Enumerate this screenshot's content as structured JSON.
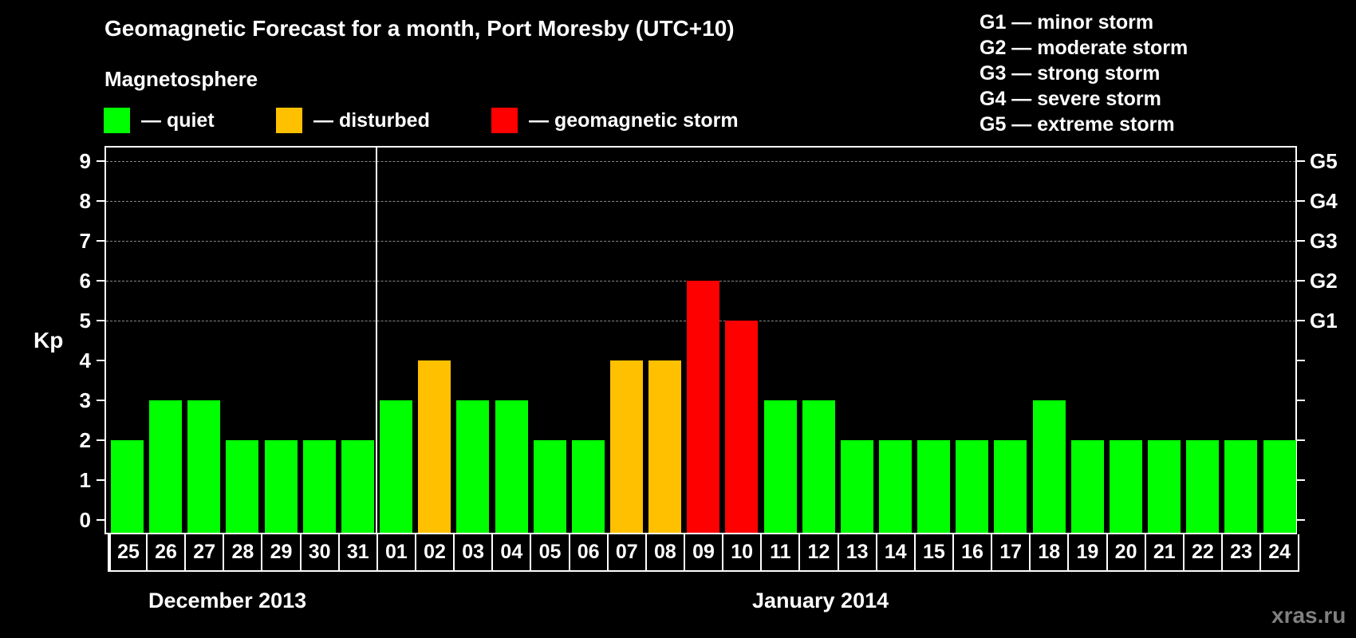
{
  "header": {
    "title": "Geomagnetic Forecast for a month, Port Moresby (UTC+10)",
    "magnetosphere_label": "Magnetosphere"
  },
  "legend": {
    "items": [
      {
        "label": "— quiet",
        "color": "#00ff00"
      },
      {
        "label": "— disturbed",
        "color": "#ffc000"
      },
      {
        "label": "— geomagnetic storm",
        "color": "#ff0000"
      }
    ]
  },
  "g_legend": [
    "G1 — minor storm",
    "G2 — moderate storm",
    "G3 — strong storm",
    "G4 — severe storm",
    "G5 — extreme storm"
  ],
  "axis": {
    "ylabel": "Kp",
    "yticks": [
      "0",
      "1",
      "2",
      "3",
      "4",
      "5",
      "6",
      "7",
      "8",
      "9"
    ],
    "right_labels": [
      {
        "value": 5,
        "label": "G1"
      },
      {
        "value": 6,
        "label": "G2"
      },
      {
        "value": 7,
        "label": "G3"
      },
      {
        "value": 8,
        "label": "G4"
      },
      {
        "value": 9,
        "label": "G5"
      }
    ]
  },
  "months": {
    "first": "December 2013",
    "second": "January 2014"
  },
  "watermark": "xras.ru",
  "chart_data": {
    "type": "bar",
    "title": "Geomagnetic Forecast for a month, Port Moresby (UTC+10)",
    "xlabel": "",
    "ylabel": "Kp",
    "ylim": [
      0,
      9
    ],
    "grid": "dashed horizontal at Kp 5-9",
    "categories": [
      "25",
      "26",
      "27",
      "28",
      "29",
      "30",
      "31",
      "01",
      "02",
      "03",
      "04",
      "05",
      "06",
      "07",
      "08",
      "09",
      "10",
      "11",
      "12",
      "13",
      "14",
      "15",
      "16",
      "17",
      "18",
      "19",
      "20",
      "21",
      "22",
      "23",
      "24"
    ],
    "values": [
      2,
      3,
      3,
      2,
      2,
      2,
      2,
      3,
      4,
      3,
      3,
      2,
      2,
      4,
      4,
      6,
      5,
      3,
      3,
      2,
      2,
      2,
      2,
      2,
      3,
      2,
      2,
      2,
      2,
      2,
      2
    ],
    "status": [
      "quiet",
      "quiet",
      "quiet",
      "quiet",
      "quiet",
      "quiet",
      "quiet",
      "quiet",
      "disturbed",
      "quiet",
      "quiet",
      "quiet",
      "quiet",
      "disturbed",
      "disturbed",
      "storm",
      "storm",
      "quiet",
      "quiet",
      "quiet",
      "quiet",
      "quiet",
      "quiet",
      "quiet",
      "quiet",
      "quiet",
      "quiet",
      "quiet",
      "quiet",
      "quiet",
      "quiet"
    ],
    "colors": {
      "quiet": "#00ff00",
      "disturbed": "#ffc000",
      "storm": "#ff0000"
    },
    "month_groups": [
      {
        "label": "December 2013",
        "days": [
          "25",
          "26",
          "27",
          "28",
          "29",
          "30",
          "31"
        ]
      },
      {
        "label": "January 2014",
        "days": [
          "01",
          "02",
          "03",
          "04",
          "05",
          "06",
          "07",
          "08",
          "09",
          "10",
          "11",
          "12",
          "13",
          "14",
          "15",
          "16",
          "17",
          "18",
          "19",
          "20",
          "21",
          "22",
          "23",
          "24"
        ]
      }
    ],
    "secondary_axis": {
      "G1": 5,
      "G2": 6,
      "G3": 7,
      "G4": 8,
      "G5": 9
    },
    "legend": [
      "quiet",
      "disturbed",
      "geomagnetic storm"
    ]
  }
}
